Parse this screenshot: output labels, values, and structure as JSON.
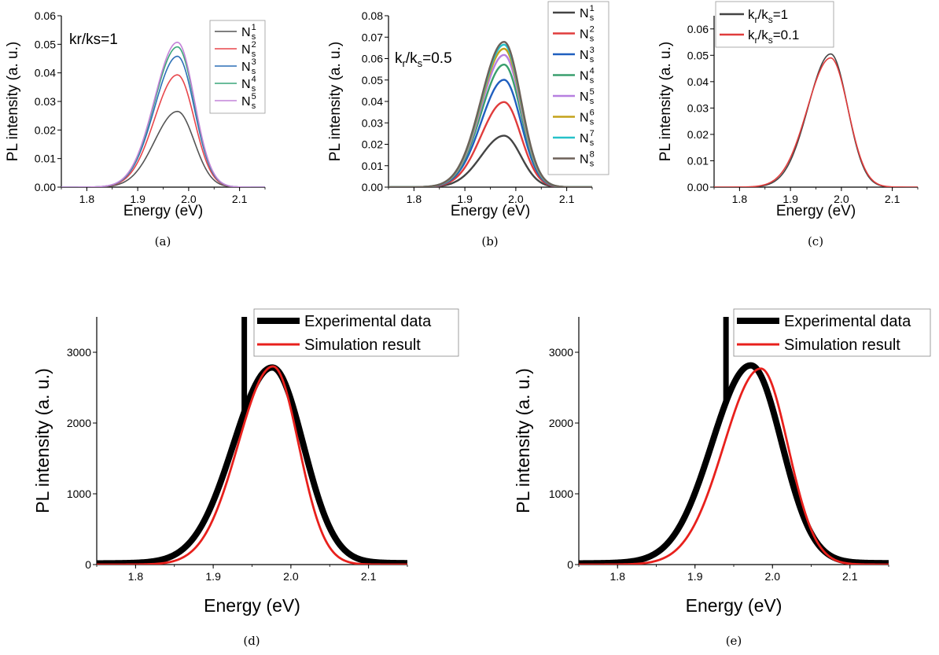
{
  "chart_data": [
    {
      "id": "a",
      "type": "line",
      "caption": "(a)",
      "annotation": "kr/ks=1",
      "xlabel": "Energy (eV)",
      "ylabel": "PL intensity (a. u.)",
      "xlim": [
        1.75,
        2.15
      ],
      "ylim": [
        0,
        0.06
      ],
      "xticks": [
        "1.8",
        "1.9",
        "2.0",
        "2.1"
      ],
      "yticks": [
        "0.00",
        "0.01",
        "0.02",
        "0.03",
        "0.04",
        "0.05",
        "0.06"
      ],
      "legend_position": "top-right",
      "series": [
        {
          "name": "N",
          "sub": "s",
          "sup": "1",
          "color": "#555555",
          "peak": 0.0265,
          "center": 1.978,
          "sigma_left": 0.045,
          "sigma_right": 0.033
        },
        {
          "name": "N",
          "sub": "s",
          "sup": "2",
          "color": "#e8474c",
          "peak": 0.0393,
          "center": 1.978,
          "sigma_left": 0.045,
          "sigma_right": 0.033
        },
        {
          "name": "N",
          "sub": "s",
          "sup": "3",
          "color": "#2b6fb7",
          "peak": 0.0458,
          "center": 1.978,
          "sigma_left": 0.045,
          "sigma_right": 0.033
        },
        {
          "name": "N",
          "sub": "s",
          "sup": "4",
          "color": "#3aa67a",
          "peak": 0.0491,
          "center": 1.978,
          "sigma_left": 0.045,
          "sigma_right": 0.033
        },
        {
          "name": "N",
          "sub": "s",
          "sup": "5",
          "color": "#c483d8",
          "peak": 0.0507,
          "center": 1.978,
          "sigma_left": 0.045,
          "sigma_right": 0.033
        }
      ]
    },
    {
      "id": "b",
      "type": "line",
      "caption": "(b)",
      "annotation_main": "k",
      "annotation_sub1": "r",
      "annotation_mid": "/k",
      "annotation_sub2": "s",
      "annotation_end": "=0.5",
      "xlabel": "Energy (eV)",
      "ylabel": "PL intensity (a. u.)",
      "xlim": [
        1.75,
        2.15
      ],
      "ylim": [
        0,
        0.08
      ],
      "xticks": [
        "1.8",
        "1.9",
        "2.0",
        "2.1"
      ],
      "yticks": [
        "0.00",
        "0.01",
        "0.02",
        "0.03",
        "0.04",
        "0.05",
        "0.06",
        "0.07",
        "0.08"
      ],
      "legend_position": "top-right",
      "series": [
        {
          "name": "N",
          "sub": "s",
          "sup": "1",
          "color": "#444444",
          "peak": 0.024,
          "center": 1.977,
          "sigma_left": 0.045,
          "sigma_right": 0.033
        },
        {
          "name": "N",
          "sub": "s",
          "sup": "2",
          "color": "#e03c3c",
          "peak": 0.0397,
          "center": 1.977,
          "sigma_left": 0.045,
          "sigma_right": 0.033
        },
        {
          "name": "N",
          "sub": "s",
          "sup": "3",
          "color": "#1f5fbf",
          "peak": 0.0501,
          "center": 1.977,
          "sigma_left": 0.045,
          "sigma_right": 0.033
        },
        {
          "name": "N",
          "sub": "s",
          "sup": "4",
          "color": "#3a9f6e",
          "peak": 0.0572,
          "center": 1.977,
          "sigma_left": 0.045,
          "sigma_right": 0.033
        },
        {
          "name": "N",
          "sub": "s",
          "sup": "5",
          "color": "#b77fe0",
          "peak": 0.0617,
          "center": 1.977,
          "sigma_left": 0.045,
          "sigma_right": 0.033
        },
        {
          "name": "N",
          "sub": "s",
          "sup": "6",
          "color": "#c4a21a",
          "peak": 0.0646,
          "center": 1.977,
          "sigma_left": 0.045,
          "sigma_right": 0.033
        },
        {
          "name": "N",
          "sub": "s",
          "sup": "7",
          "color": "#27c1c9",
          "peak": 0.0665,
          "center": 1.977,
          "sigma_left": 0.045,
          "sigma_right": 0.033
        },
        {
          "name": "N",
          "sub": "s",
          "sup": "8",
          "color": "#6d6158",
          "peak": 0.0678,
          "center": 1.977,
          "sigma_left": 0.045,
          "sigma_right": 0.033
        }
      ]
    },
    {
      "id": "c",
      "type": "line",
      "caption": "(c)",
      "xlabel": "Energy (eV)",
      "ylabel": "PL intensity (a. u.)",
      "xlim": [
        1.75,
        2.15
      ],
      "ylim": [
        0,
        0.065
      ],
      "xticks": [
        "1.8",
        "1.9",
        "2.0",
        "2.1"
      ],
      "yticks": [
        "0.00",
        "0.01",
        "0.02",
        "0.03",
        "0.04",
        "0.05",
        "0.06"
      ],
      "legend_position": "top-left",
      "series": [
        {
          "name_a": "k",
          "sub_a": "r",
          "name_b": "/k",
          "sub_b": "s",
          "name_c": "=1",
          "color": "#444444",
          "peak": 0.0505,
          "center": 1.979,
          "sigma_left": 0.044,
          "sigma_right": 0.033
        },
        {
          "name_a": "k",
          "sub_a": "r",
          "name_b": "/k",
          "sub_b": "s",
          "name_c": "=0.1",
          "color": "#e03c3c",
          "peak": 0.049,
          "center": 1.979,
          "sigma_left": 0.046,
          "sigma_right": 0.034
        }
      ]
    },
    {
      "id": "d",
      "type": "line",
      "caption": "(d)",
      "xlabel": "Energy (eV)",
      "ylabel": "PL intensity (a. u.)",
      "xlim": [
        1.75,
        2.15
      ],
      "ylim": [
        0,
        3500
      ],
      "xticks": [
        "1.8",
        "1.9",
        "2.0",
        "2.1"
      ],
      "yticks": [
        "0",
        "1000",
        "2000",
        "3000"
      ],
      "legend_position": "top-right",
      "series": [
        {
          "name": "Experimental data",
          "color": "#000000",
          "peak": 2760,
          "center": 1.976,
          "sigma_left": 0.05,
          "sigma_right": 0.04,
          "baseline": 25,
          "spike_x": 1.94,
          "spike_top": 3500
        },
        {
          "name": "Simulation result",
          "color": "#e8201c",
          "peak": 2800,
          "center": 1.977,
          "sigma_left": 0.045,
          "sigma_right": 0.033
        }
      ]
    },
    {
      "id": "e",
      "type": "line",
      "caption": "(e)",
      "xlabel": "Energy (eV)",
      "ylabel": "PL intensity (a. u.)",
      "xlim": [
        1.75,
        2.15
      ],
      "ylim": [
        0,
        3500
      ],
      "xticks": [
        "1.8",
        "1.9",
        "2.0",
        "2.1"
      ],
      "yticks": [
        "0",
        "1000",
        "2000",
        "3000"
      ],
      "legend_position": "top-right",
      "series": [
        {
          "name": "Experimental data",
          "color": "#000000",
          "peak": 2790,
          "center": 1.972,
          "sigma_left": 0.05,
          "sigma_right": 0.04,
          "baseline": 25,
          "spike_x": 1.94,
          "spike_top": 3500
        },
        {
          "name": "Simulation result",
          "color": "#e8201c",
          "peak": 2770,
          "center": 1.985,
          "sigma_left": 0.048,
          "sigma_right": 0.035
        }
      ]
    }
  ]
}
